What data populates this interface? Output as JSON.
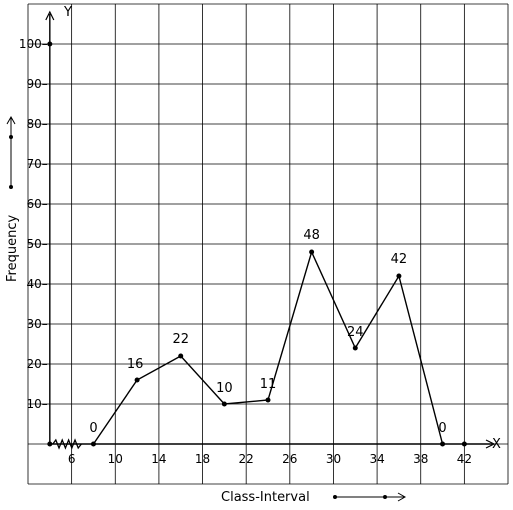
{
  "chart_data": {
    "type": "line",
    "title": "",
    "xlabel": "Class-Interval",
    "ylabel": "Frequency",
    "x_axis_letter": "X",
    "y_axis_letter": "Y",
    "x": [
      8,
      12,
      16,
      20,
      24,
      28,
      32,
      36,
      40
    ],
    "y": [
      0,
      16,
      22,
      10,
      11,
      48,
      24,
      42,
      0
    ],
    "point_labels": [
      "0",
      "16",
      "22",
      "10",
      "11",
      "48",
      "24",
      "42",
      "0"
    ],
    "x_ticks": [
      "6",
      "10",
      "14",
      "18",
      "22",
      "26",
      "30",
      "34",
      "38",
      "42"
    ],
    "x_tick_values": [
      6,
      10,
      14,
      18,
      22,
      26,
      30,
      34,
      38,
      42
    ],
    "y_ticks": [
      "10",
      "20",
      "30",
      "40",
      "50",
      "60",
      "70",
      "80",
      "90",
      "100"
    ],
    "y_tick_values": [
      10,
      20,
      30,
      40,
      50,
      60,
      70,
      80,
      90,
      100
    ],
    "xlim": [
      2,
      46
    ],
    "ylim": [
      -10,
      110
    ],
    "grid": true,
    "axis_break_on_x": true,
    "legend": "none"
  }
}
